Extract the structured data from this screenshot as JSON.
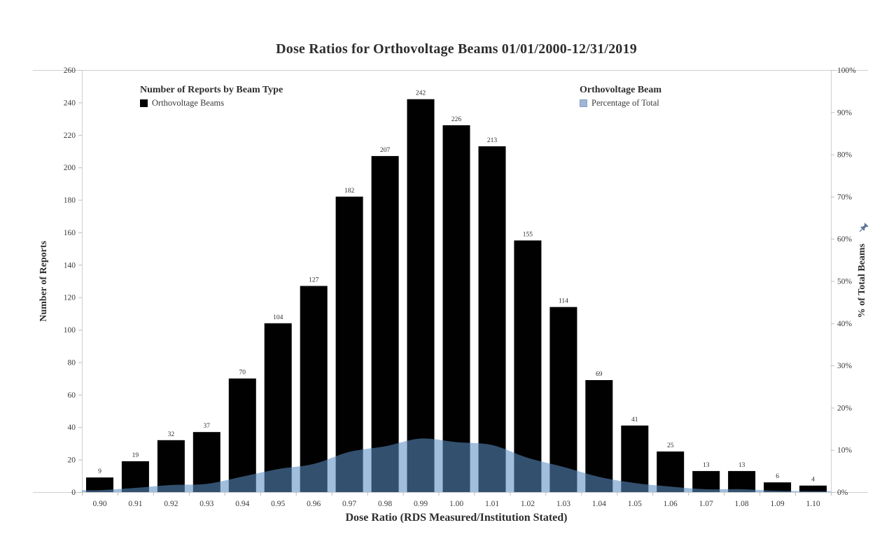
{
  "title": "Dose Ratios for Orthovoltage Beams 01/01/2000-12/31/2019",
  "legend_left": {
    "title": "Number of Reports by Beam Type",
    "items": [
      {
        "label": "Orthovoltage Beams",
        "swatch_color": "#010101"
      }
    ]
  },
  "legend_right": {
    "title": "Orthovoltage Beam",
    "items": [
      {
        "label": "Percentage of Total",
        "swatch_color": "#9fb6d4"
      }
    ]
  },
  "icons": {
    "pin": "pushpin-icon"
  },
  "colors": {
    "bar": "#010101",
    "area_fill": "rgba(89,140,195,0.57)",
    "frame_line": "#cfcfcf",
    "tick_mark": "#bdbdbd",
    "tick_text": "#3a3a3a",
    "title_text": "#2e2e2e",
    "pin": "#5d7895"
  },
  "chart_data": {
    "type": "bar",
    "title": "Dose Ratios for Orthovoltage Beams 01/01/2000-12/31/2019",
    "xlabel": "Dose Ratio (RDS Measured/Institution Stated)",
    "categories": [
      "0.90",
      "0.91",
      "0.92",
      "0.93",
      "0.94",
      "0.95",
      "0.96",
      "0.97",
      "0.98",
      "0.99",
      "1.00",
      "1.01",
      "1.02",
      "1.03",
      "1.04",
      "1.05",
      "1.06",
      "1.07",
      "1.08",
      "1.09",
      "1.10"
    ],
    "series": [
      {
        "name": "Orthovoltage Beams",
        "type": "bar",
        "yaxis": "left",
        "values": [
          9,
          19,
          32,
          37,
          70,
          104,
          127,
          182,
          207,
          242,
          226,
          213,
          155,
          114,
          69,
          41,
          25,
          13,
          13,
          6,
          4
        ]
      },
      {
        "name": "Percentage of Total",
        "type": "area",
        "yaxis": "right",
        "values": [
          0.47,
          1.0,
          1.68,
          1.94,
          3.67,
          5.45,
          6.66,
          9.54,
          10.85,
          12.68,
          11.84,
          11.16,
          8.12,
          5.97,
          3.62,
          2.15,
          1.31,
          0.68,
          0.68,
          0.31,
          0.21
        ]
      }
    ],
    "left_axis": {
      "label": "Number of Reports",
      "min": 0,
      "max": 260,
      "step": 20
    },
    "right_axis": {
      "label": "% of Total Beams",
      "min": 0,
      "max": 100,
      "step": 10,
      "suffix": "%"
    },
    "grid": false,
    "legend_position": "top"
  }
}
